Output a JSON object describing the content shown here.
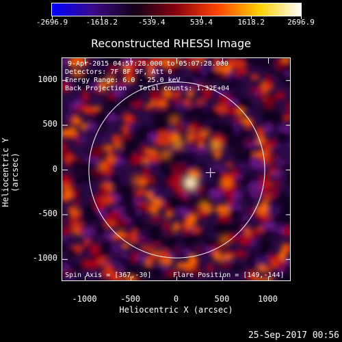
{
  "colorbar": {
    "ticks": [
      "-2696.9",
      "-1618.2",
      "-539.4",
      "539.4",
      "1618.2",
      "2696.9"
    ],
    "colors": [
      "#0000ff",
      "#3b0a88",
      "#120018",
      "#8a0010",
      "#ff4500",
      "#ffd000",
      "#ffffff"
    ]
  },
  "title": "Reconstructed RHESSI Image",
  "info": {
    "time_range": "9-Apr-2015 04:57:28.000 to 05:07:28.000",
    "detectors": "Detectors: 7F 8F 9F, Att 0",
    "energy": "Energy Range: 6.0 - 25.0 keV",
    "method": "Back Projection",
    "total_counts": "Total counts: 1.32E+04",
    "spin_axis": "Spin Axis = [367,-30]",
    "flare_position": "Flare Position = [149,-144]"
  },
  "axes": {
    "xlabel": "Heliocentric X (arcsec)",
    "ylabel": "Heliocentric Y (arcsec)",
    "xticks": [
      -1000,
      -500,
      0,
      500,
      1000
    ],
    "yticks": [
      1000,
      500,
      0,
      -500,
      -1000
    ],
    "xlim": [
      -1250,
      1250
    ],
    "ylim": [
      -1250,
      1250
    ]
  },
  "markers": {
    "spin_axis": [
      367,
      -30
    ],
    "solar_radius": 960
  },
  "timestamp": "25-Sep-2017 00:56"
}
